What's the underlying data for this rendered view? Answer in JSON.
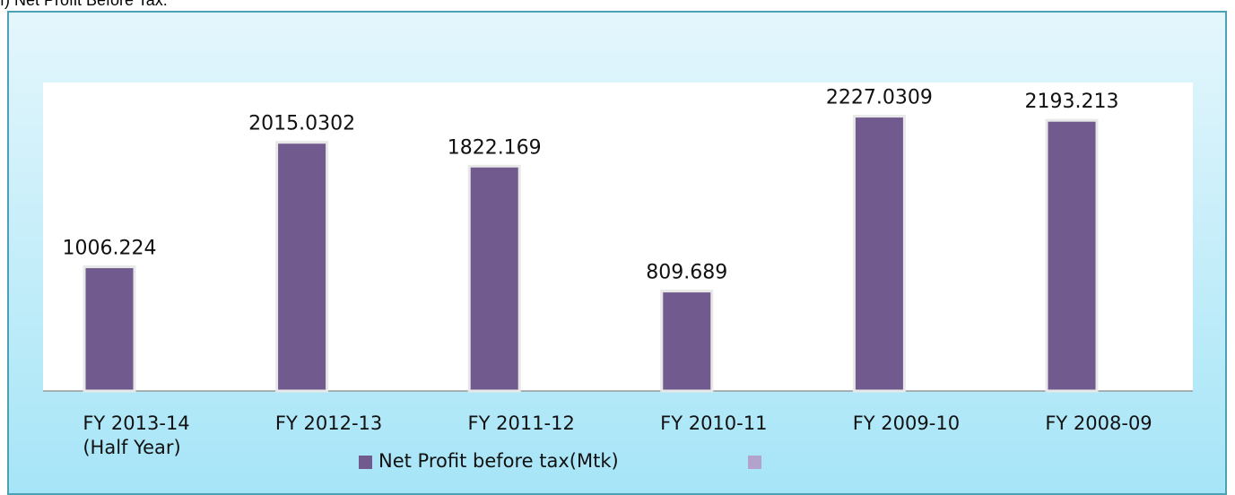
{
  "heading": "f) Net Profit Before Tax:",
  "chart_data": {
    "type": "bar",
    "categories": [
      "FY 2013-14\n(Half Year)",
      "FY 2012-13",
      "FY 2011-12",
      "FY 2010-11",
      "FY 2009-10",
      "FY 2008-09"
    ],
    "series": [
      {
        "name": "Net Profit before tax(Mtk)",
        "color": "#705a8e",
        "values": [
          1006.224,
          2015.0302,
          1822.169,
          809.689,
          2227.0309,
          2193.213
        ]
      }
    ],
    "ylim": [
      0,
      2500
    ]
  }
}
